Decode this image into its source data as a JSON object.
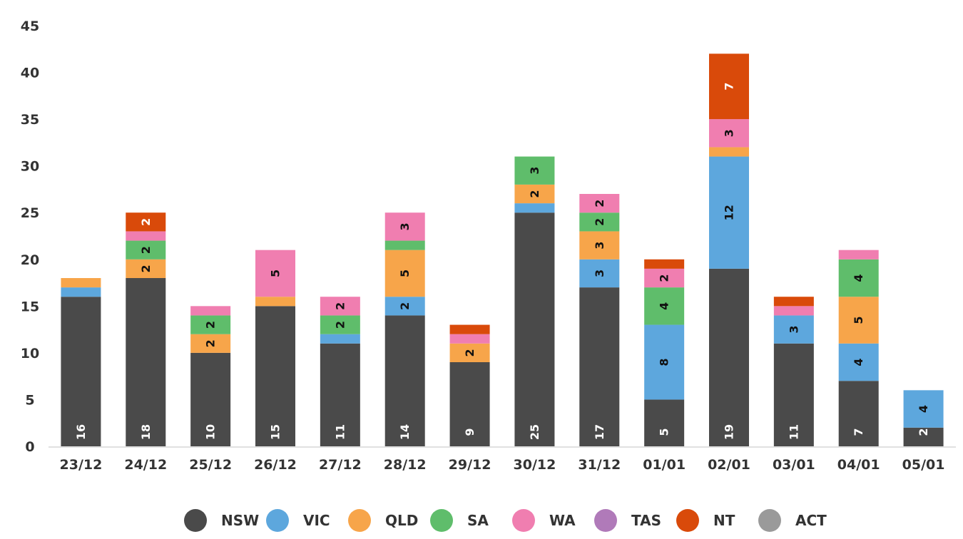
{
  "chart_data": {
    "type": "bar",
    "stacked": true,
    "categories": [
      "23/12",
      "24/12",
      "25/12",
      "26/12",
      "27/12",
      "28/12",
      "29/12",
      "30/12",
      "31/12",
      "01/01",
      "02/01",
      "03/01",
      "04/01",
      "05/01"
    ],
    "series": [
      {
        "name": "NSW",
        "color": "#4a4a4a",
        "values": [
          16,
          18,
          10,
          15,
          11,
          14,
          9,
          25,
          17,
          5,
          19,
          11,
          7,
          2
        ]
      },
      {
        "name": "VIC",
        "color": "#5da7dd",
        "values": [
          1,
          0,
          0,
          0,
          1,
          2,
          0,
          1,
          3,
          8,
          12,
          3,
          4,
          4
        ]
      },
      {
        "name": "QLD",
        "color": "#f7a54a",
        "values": [
          1,
          2,
          2,
          1,
          0,
          5,
          2,
          2,
          3,
          0,
          1,
          0,
          5,
          0
        ]
      },
      {
        "name": "SA",
        "color": "#5fbd6b",
        "values": [
          0,
          2,
          2,
          0,
          2,
          1,
          0,
          3,
          2,
          4,
          0,
          0,
          4,
          0
        ]
      },
      {
        "name": "WA",
        "color": "#f07eb0",
        "values": [
          0,
          1,
          1,
          5,
          2,
          3,
          1,
          0,
          2,
          2,
          3,
          1,
          1,
          0
        ]
      },
      {
        "name": "TAS",
        "color": "#b07ab9",
        "values": [
          0,
          0,
          0,
          0,
          0,
          0,
          0,
          0,
          0,
          0,
          0,
          0,
          0,
          0
        ]
      },
      {
        "name": "NT",
        "color": "#d94a0a",
        "values": [
          0,
          2,
          0,
          0,
          0,
          0,
          1,
          0,
          0,
          1,
          7,
          1,
          0,
          0
        ]
      },
      {
        "name": "ACT",
        "color": "#9a9a9a",
        "values": [
          0,
          0,
          0,
          0,
          0,
          0,
          0,
          0,
          0,
          0,
          0,
          0,
          0,
          0
        ]
      }
    ],
    "data_labels": [
      {
        "series": "NSW",
        "values": [
          16,
          18,
          10,
          15,
          11,
          14,
          9,
          25,
          17,
          5,
          19,
          11,
          7,
          2
        ]
      },
      {
        "series": "VIC",
        "values": [
          null,
          null,
          null,
          null,
          null,
          2,
          null,
          null,
          3,
          8,
          12,
          3,
          4,
          4
        ]
      },
      {
        "series": "QLD",
        "values": [
          null,
          2,
          2,
          null,
          null,
          5,
          2,
          2,
          3,
          null,
          null,
          null,
          5,
          null
        ]
      },
      {
        "series": "SA",
        "values": [
          null,
          2,
          2,
          null,
          2,
          null,
          null,
          3,
          2,
          4,
          null,
          null,
          4,
          null
        ]
      },
      {
        "series": "WA",
        "values": [
          null,
          null,
          null,
          5,
          2,
          3,
          null,
          null,
          2,
          2,
          3,
          null,
          null,
          null
        ]
      },
      {
        "series": "NT",
        "values": [
          null,
          2,
          null,
          null,
          null,
          null,
          null,
          null,
          null,
          null,
          7,
          null,
          null,
          null
        ]
      }
    ],
    "yticks": [
      0,
      5,
      10,
      15,
      20,
      25,
      30,
      35,
      40,
      45
    ],
    "ylim": [
      0,
      45
    ],
    "grid": false,
    "legend": "bottom-center",
    "title": "",
    "xlabel": "",
    "ylabel": ""
  }
}
